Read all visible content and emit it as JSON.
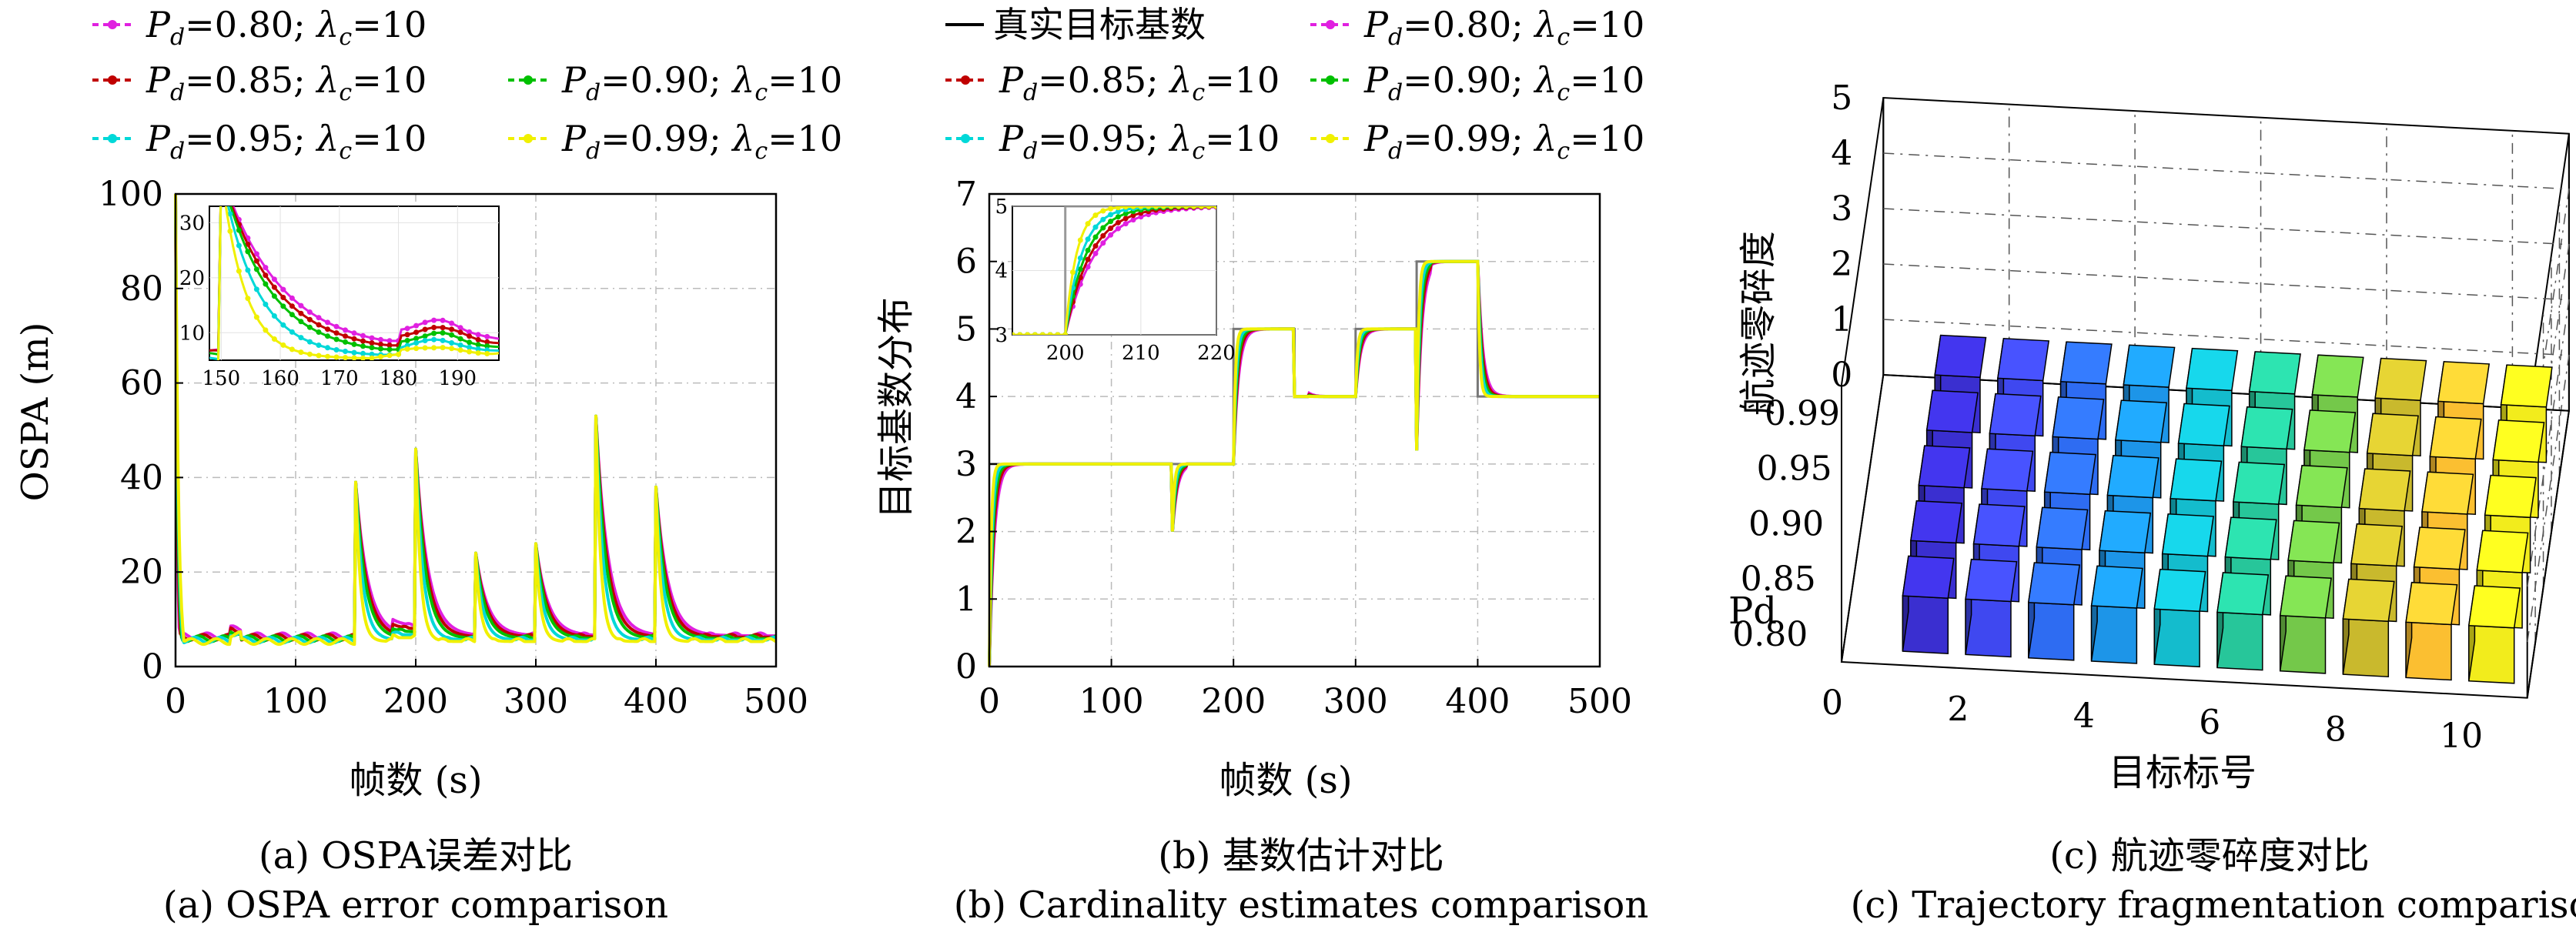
{
  "legend_a": [
    {
      "label_main": "P",
      "label_sub": "d",
      "label_rest": "=0.80; ",
      "label_lam": "λ",
      "label_lsub": "c",
      "label_tail": "=10",
      "color": "#e020e0"
    },
    {
      "label_main": "P",
      "label_sub": "d",
      "label_rest": "=0.85; ",
      "label_lam": "λ",
      "label_lsub": "c",
      "label_tail": "=10",
      "color": "#c00000"
    },
    {
      "label_main": "P",
      "label_sub": "d",
      "label_rest": "=0.90; ",
      "label_lam": "λ",
      "label_lsub": "c",
      "label_tail": "=10",
      "color": "#00c000"
    },
    {
      "label_main": "P",
      "label_sub": "d",
      "label_rest": "=0.95; ",
      "label_lam": "λ",
      "label_lsub": "c",
      "label_tail": "=10",
      "color": "#00d8d8"
    },
    {
      "label_main": "P",
      "label_sub": "d",
      "label_rest": "=0.99; ",
      "label_lam": "λ",
      "label_lsub": "c",
      "label_tail": "=10",
      "color": "#f0f000"
    }
  ],
  "legend_b_true": "真实目标基数",
  "captions": {
    "a_cn": "(a) OSPA误差对比",
    "a_en": "(a) OSPA error comparison",
    "b_cn": "(b) 基数估计对比",
    "b_en": "(b) Cardinality estimates comparison",
    "c_cn": "(c) 航迹零碎度对比",
    "c_en": "(c) Trajectory fragmentation comparison"
  },
  "chart_data": [
    {
      "type": "line",
      "xlabel": "帧数 (s)",
      "ylabel": "OSPA (m)",
      "xlim": [
        0,
        500
      ],
      "ylim": [
        0,
        100
      ],
      "xticks": [
        0,
        100,
        200,
        300,
        400,
        500
      ],
      "yticks": [
        0,
        20,
        40,
        60,
        80,
        100
      ],
      "grid": true,
      "legend_position": "top",
      "peaks": [
        {
          "x": 150,
          "y": 39
        },
        {
          "x": 200,
          "y": 46
        },
        {
          "x": 250,
          "y": 24
        },
        {
          "x": 300,
          "y": 26
        },
        {
          "x": 350,
          "y": 53
        },
        {
          "x": 400,
          "y": 38
        }
      ],
      "series": [
        {
          "name": "Pd=0.80; λc=10",
          "baseline": 6.5,
          "decay": 10,
          "color": "#e020e0"
        },
        {
          "name": "Pd=0.85; λc=10",
          "baseline": 6.2,
          "decay": 9,
          "color": "#c00000"
        },
        {
          "name": "Pd=0.90; λc=10",
          "baseline": 5.9,
          "decay": 8,
          "color": "#00c000"
        },
        {
          "name": "Pd=0.95; λc=10",
          "baseline": 5.6,
          "decay": 6,
          "color": "#00d8d8"
        },
        {
          "name": "Pd=0.99; λc=10",
          "baseline": 5.3,
          "decay": 4,
          "color": "#f0f000"
        }
      ],
      "inset": {
        "xlim": [
          148,
          197
        ],
        "ylim": [
          5,
          33
        ],
        "xticks": [
          150,
          160,
          170,
          180,
          190
        ],
        "yticks": [
          10,
          20,
          30
        ]
      }
    },
    {
      "type": "line",
      "xlabel": "帧数 (s)",
      "ylabel": "目标基数分布",
      "xlim": [
        0,
        500
      ],
      "ylim": [
        0,
        7
      ],
      "xticks": [
        0,
        100,
        200,
        300,
        400,
        500
      ],
      "yticks": [
        0,
        1,
        2,
        3,
        4,
        5,
        6,
        7
      ],
      "grid": true,
      "legend_position": "top",
      "true_cardinality": {
        "name": "真实目标基数",
        "segments": [
          {
            "x0": 0,
            "x1": 200,
            "y": 3
          },
          {
            "x0": 200,
            "x1": 250,
            "y": 5
          },
          {
            "x0": 250,
            "x1": 300,
            "y": 4
          },
          {
            "x0": 300,
            "x1": 350,
            "y": 5
          },
          {
            "x0": 350,
            "x1": 400,
            "y": 6
          },
          {
            "x0": 400,
            "x1": 500,
            "y": 4
          }
        ]
      },
      "dips": [
        {
          "x": 150,
          "y": 2
        },
        {
          "x": 250,
          "y": 4
        },
        {
          "x": 350,
          "y": 3.2
        }
      ],
      "series": [
        {
          "name": "Pd=0.80; λc=10",
          "tau": 4.0,
          "color": "#e020e0"
        },
        {
          "name": "Pd=0.85; λc=10",
          "tau": 3.4,
          "color": "#c00000"
        },
        {
          "name": "Pd=0.90; λc=10",
          "tau": 2.8,
          "color": "#00c000"
        },
        {
          "name": "Pd=0.95; λc=10",
          "tau": 2.2,
          "color": "#00d8d8"
        },
        {
          "name": "Pd=0.99; λc=10",
          "tau": 1.5,
          "color": "#f0f000"
        }
      ],
      "inset": {
        "xlim": [
          193,
          220
        ],
        "ylim": [
          3,
          5
        ],
        "xticks": [
          200,
          210,
          220
        ],
        "yticks": [
          3,
          4,
          5
        ]
      }
    },
    {
      "type": "bar3d",
      "xlabel": "目标标号",
      "ylabel": "Pd",
      "zlabel": "航迹零碎度",
      "xticks": [
        0,
        2,
        4,
        6,
        8,
        10
      ],
      "yticks": [
        "0.80",
        "0.85",
        "0.90",
        "0.95",
        "0.99"
      ],
      "zticks": [
        0,
        1,
        2,
        3,
        4,
        5
      ],
      "categories_x": [
        1,
        2,
        3,
        4,
        5,
        6,
        7,
        8,
        9,
        10
      ],
      "categories_y": [
        "0.80",
        "0.85",
        "0.90",
        "0.95",
        "0.99"
      ],
      "values": [
        [
          1,
          1,
          1,
          1,
          1,
          1,
          1,
          1,
          1,
          1
        ],
        [
          1,
          1,
          1,
          1,
          1,
          1,
          1,
          1,
          1,
          1
        ],
        [
          1,
          1,
          1,
          1,
          1,
          1,
          1,
          1,
          1,
          1
        ],
        [
          1,
          1,
          1,
          1,
          1,
          1,
          1,
          1,
          1,
          1
        ],
        [
          1,
          1,
          1,
          1,
          1,
          1,
          1,
          1,
          1,
          1
        ]
      ],
      "colors": [
        "#3a2fd0",
        "#3f48f0",
        "#2e6cf2",
        "#1d95e8",
        "#14bccd",
        "#27c69a",
        "#74c84a",
        "#c9b92d",
        "#fbbf31",
        "#f2ec1c"
      ]
    }
  ]
}
